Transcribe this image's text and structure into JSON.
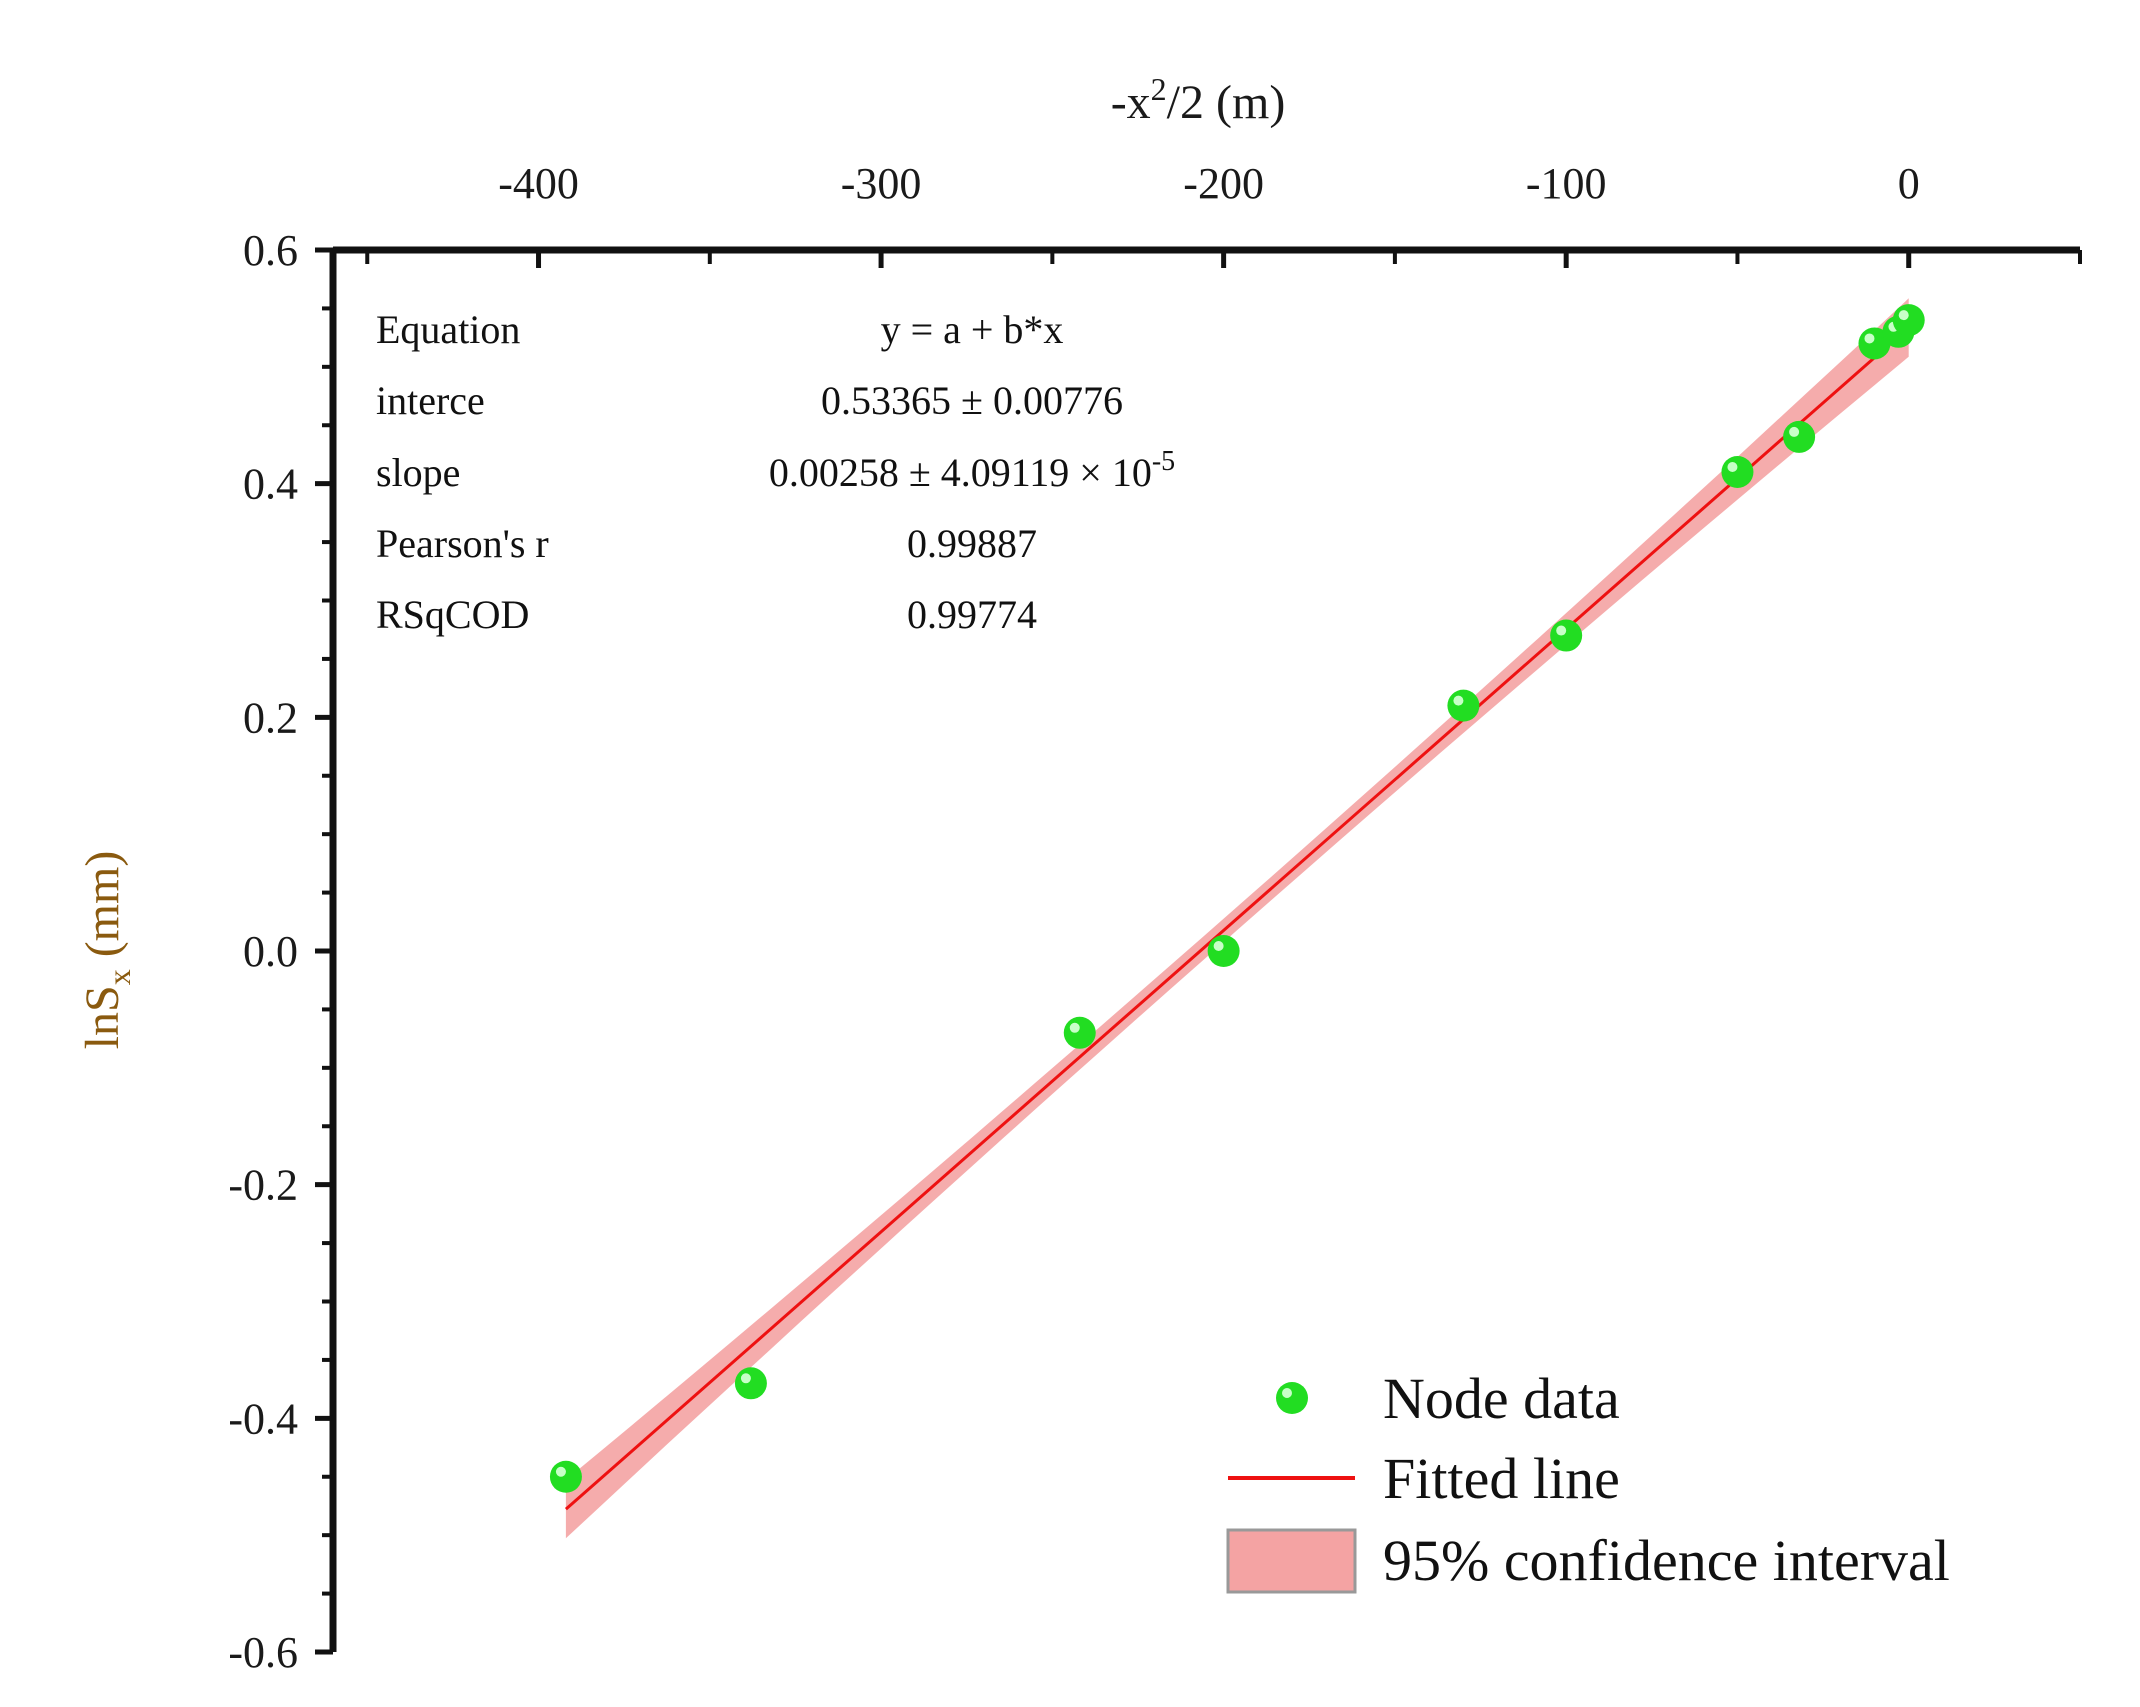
{
  "chart_data": {
    "type": "scatter",
    "x_axis": {
      "label": "-x²/2 (m)",
      "label_main": "-x",
      "label_sup": "2",
      "label_rest": "/2 (m)",
      "position": "top",
      "range": [
        -460,
        50
      ],
      "ticks": [
        -400,
        -300,
        -200,
        -100,
        0
      ],
      "tick_labels": [
        "-400",
        "-300",
        "-200",
        "-100",
        "0"
      ]
    },
    "y_axis": {
      "label": "lnSx (mm)",
      "label_main": "lnS",
      "label_sub": "x",
      "label_rest": " (mm)",
      "range": [
        -0.6,
        0.6
      ],
      "ticks": [
        -0.6,
        -0.4,
        -0.2,
        0.0,
        0.2,
        0.4,
        0.6
      ],
      "tick_labels": [
        "-0.6",
        "-0.4",
        "-0.2",
        "0.0",
        "0.2",
        "0.4",
        "0.6"
      ]
    },
    "series": [
      {
        "name": "Node data",
        "kind": "scatter",
        "color": "#22dd22",
        "x": [
          -392,
          -338,
          -242,
          -200,
          -130,
          -100,
          -50,
          -32,
          -10,
          -3,
          0
        ],
        "y": [
          -0.45,
          -0.37,
          -0.07,
          0.0,
          0.21,
          0.27,
          0.41,
          0.44,
          0.52,
          0.53,
          0.54
        ]
      },
      {
        "name": "Fitted line",
        "kind": "line",
        "color": "#ee1111",
        "intercept": 0.53365,
        "slope": 0.00258,
        "x_range": [
          -392,
          0
        ]
      },
      {
        "name": "95% confidence interval",
        "kind": "band",
        "color": "#f4a3a3",
        "half_width_ends": 0.025,
        "half_width_center": 0.01
      }
    ],
    "stats_table": [
      {
        "label": "Equation",
        "value": "y = a + b*x"
      },
      {
        "label": "interce",
        "value": "0.53365 ± 0.00776"
      },
      {
        "label": "slope",
        "value": "0.00258 ± 4.09119 ×  10",
        "value_sup": "-5"
      },
      {
        "label": "Pearson's r",
        "value": "0.99887"
      },
      {
        "label": "RSqCOD",
        "value": "0.99774"
      }
    ],
    "legend": {
      "position": "bottom-right",
      "items": [
        "Node data",
        "Fitted line",
        "95% confidence interval"
      ]
    }
  }
}
